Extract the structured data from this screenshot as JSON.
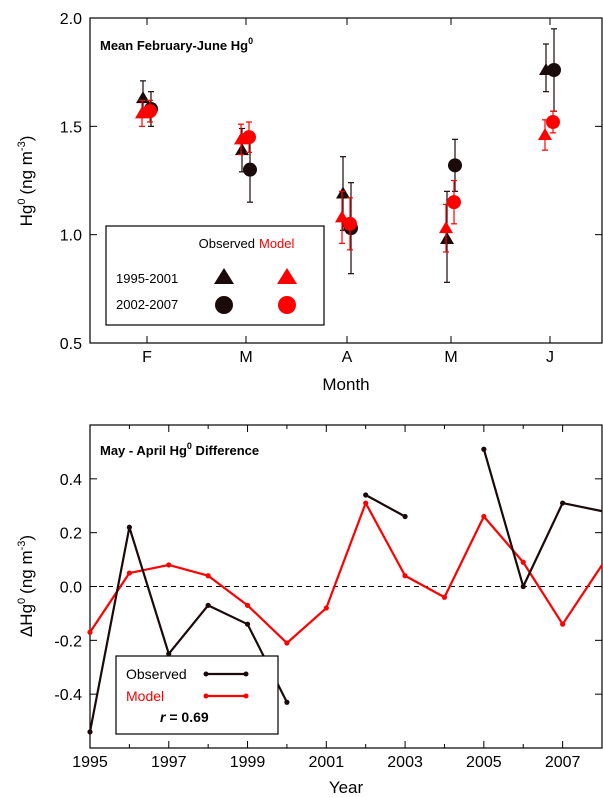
{
  "colors": {
    "observed": "#1a0a0a",
    "model": "#ff0000",
    "axis": "#000000"
  },
  "chart_data": [
    {
      "type": "scatter",
      "title": "Mean February-June Hg",
      "title_sup": "0",
      "xlabel": "Month",
      "ylabel": "Hg",
      "ylabel_sup": "0",
      "ylabel_unit": "(ng m",
      "ylabel_unit_sup": "-3",
      "ylabel_unit_close": ")",
      "categories": [
        "F",
        "M",
        "A",
        "M",
        "J"
      ],
      "ylim": [
        0.5,
        2.0
      ],
      "yticks": [
        "0.5",
        "1.0",
        "1.5",
        "2.0"
      ],
      "legend": {
        "placement": "bottom-left",
        "header_observed": "Observed",
        "header_model": "Model",
        "rows": [
          "1995-2001",
          "2002-2007"
        ]
      },
      "series": [
        {
          "name": "1995-2001",
          "source": "Observed",
          "marker": "triangle",
          "values": [
            1.63,
            1.39,
            1.19,
            0.98,
            1.76
          ],
          "err_low": [
            1.55,
            1.29,
            1.02,
            0.78,
            1.66
          ],
          "err_high": [
            1.71,
            1.49,
            1.36,
            1.2,
            1.88
          ]
        },
        {
          "name": "2002-2007",
          "source": "Observed",
          "marker": "circle",
          "values": [
            1.58,
            1.3,
            1.03,
            1.32,
            1.76
          ],
          "err_low": [
            1.5,
            1.15,
            0.82,
            1.2,
            1.57
          ],
          "err_high": [
            1.66,
            1.45,
            1.24,
            1.44,
            1.95
          ]
        },
        {
          "name": "1995-2001",
          "source": "Model",
          "marker": "triangle",
          "values": [
            1.56,
            1.44,
            1.08,
            1.03,
            1.46
          ],
          "err_low": [
            1.5,
            1.37,
            0.96,
            0.92,
            1.39
          ],
          "err_high": [
            1.62,
            1.51,
            1.2,
            1.14,
            1.53
          ]
        },
        {
          "name": "2002-2007",
          "source": "Model",
          "marker": "circle",
          "values": [
            1.57,
            1.45,
            1.05,
            1.15,
            1.52
          ],
          "err_low": [
            1.52,
            1.38,
            0.93,
            1.05,
            1.47
          ],
          "err_high": [
            1.62,
            1.52,
            1.17,
            1.25,
            1.57
          ]
        }
      ]
    },
    {
      "type": "line",
      "title": "May - April Hg",
      "title_sup": "0",
      "title_end": " Difference",
      "xlabel": "Year",
      "ylabel": "ΔHg",
      "ylabel_sup": "0",
      "ylabel_unit": "(ng m",
      "ylabel_unit_sup": "-3",
      "ylabel_unit_close": ")",
      "xlim": [
        1995,
        2008
      ],
      "ylim": [
        -0.6,
        0.6
      ],
      "xticks": [
        "1995",
        "1997",
        "1999",
        "2001",
        "2003",
        "2005",
        "2007"
      ],
      "yticks": [
        "-0.4",
        "-0.2",
        "0.0",
        "0.2",
        "0.4"
      ],
      "reference_line": 0.0,
      "legend": {
        "placement": "bottom-left",
        "observed": "Observed",
        "model": "Model",
        "r_label": "r",
        "r_value": " = 0.69"
      },
      "series": [
        {
          "name": "Observed",
          "segments": [
            [
              [
                1995,
                -0.54
              ],
              [
                1996,
                0.22
              ],
              [
                1997,
                -0.25
              ],
              [
                1998,
                -0.07
              ],
              [
                1999,
                -0.14
              ],
              [
                2000,
                -0.43
              ]
            ],
            [
              [
                2002,
                0.34
              ],
              [
                2003,
                0.26
              ]
            ],
            [
              [
                2005,
                0.51
              ],
              [
                2006,
                0.0
              ],
              [
                2007,
                0.31
              ],
              [
                2008,
                0.28
              ]
            ]
          ]
        },
        {
          "name": "Model",
          "segments": [
            [
              [
                1995,
                -0.17
              ],
              [
                1996,
                0.05
              ],
              [
                1997,
                0.08
              ],
              [
                1998,
                0.04
              ],
              [
                1999,
                -0.07
              ],
              [
                2000,
                -0.21
              ],
              [
                2001,
                -0.08
              ],
              [
                2002,
                0.31
              ],
              [
                2003,
                0.04
              ],
              [
                2004,
                -0.04
              ],
              [
                2005,
                0.26
              ],
              [
                2006,
                0.09
              ],
              [
                2007,
                -0.14
              ],
              [
                2008,
                0.08
              ]
            ]
          ]
        }
      ]
    }
  ]
}
